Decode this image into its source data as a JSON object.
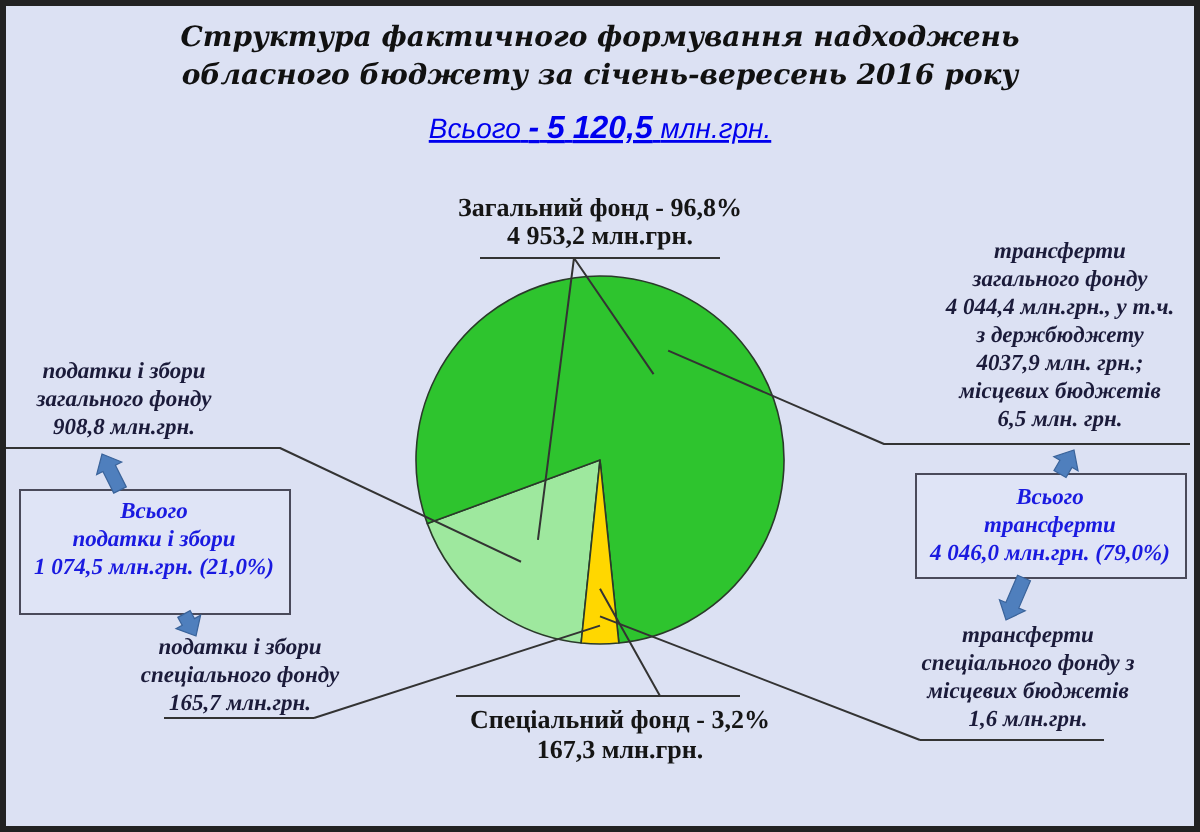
{
  "chart_data": {
    "type": "pie",
    "title": "Структура фактичного формування надходжень\nобласного бюджету за січень-вересень 2016 року",
    "subtitle": "Всього - 5 120,5 млн.грн.",
    "categories": [
      "податки і збори\nзагального фонду",
      "трансферти\nзагального фонду",
      "Спеціальний фонд - 3,2%"
    ],
    "values": [
      908.8,
      4044.4,
      167.3
    ],
    "colors": [
      "#9ee89e",
      "#2ec42e",
      "#ffd700"
    ],
    "value_labels": [
      "908,8 млн.грн.",
      "4 044,4 млн.грн., у т.ч.\nз держбюджету\n4037,9 млн. грн.;\nмісцевих бюджетів\n6,5 млн. грн.",
      "167,3 млн.грн."
    ],
    "annotations": [
      "Загальний фонд - 96,8%\n4 953,2 млн.грн.",
      "Всього\nподатки і збори\n1 074,5 млн.грн. (21,0%)",
      "Всього\nтрансферти\n4 046,0 млн.грн. (79,0%)",
      "податки і збори\nспеціального фонду\n165,7 млн.грн.",
      "трансферти\nспеціального фонду з\nмісцевих бюджетів\n1,6 млн.грн."
    ]
  }
}
